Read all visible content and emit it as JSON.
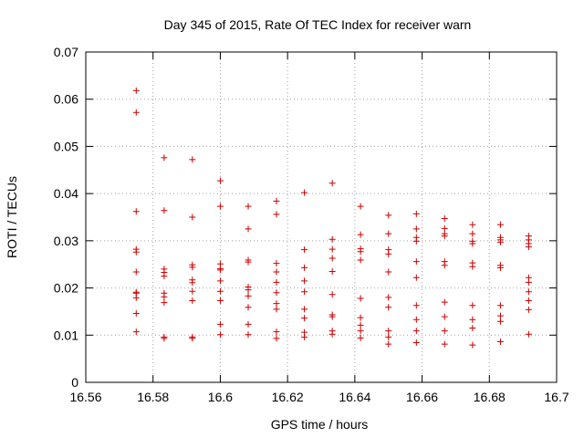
{
  "chart_data": {
    "type": "scatter",
    "title": "Day 345 of 2015, Rate Of TEC Index for receiver warn",
    "xlabel": "GPS time / hours",
    "ylabel": "ROTI / TECUs",
    "xlim": [
      16.56,
      16.7
    ],
    "ylim": [
      0,
      0.07
    ],
    "xticks": [
      16.56,
      16.58,
      16.6,
      16.62,
      16.64,
      16.66,
      16.68,
      16.7
    ],
    "xtick_labels": [
      "16.56",
      "16.58",
      "16.6",
      "16.62",
      "16.64",
      "16.66",
      "16.68",
      "16.7"
    ],
    "yticks": [
      0,
      0.01,
      0.02,
      0.03,
      0.04,
      0.05,
      0.06,
      0.07
    ],
    "ytick_labels": [
      "0",
      "0.01",
      "0.02",
      "0.03",
      "0.04",
      "0.05",
      "0.06",
      "0.07"
    ],
    "grid": true,
    "marker": "+",
    "marker_color": "#cc0000",
    "series": [
      {
        "x": 16.575,
        "y": [
          0.0618,
          0.0572,
          0.0362,
          0.0282,
          0.0276,
          0.0234,
          0.0191,
          0.0189,
          0.0179,
          0.0146,
          0.0107
        ]
      },
      {
        "x": 16.5833,
        "y": [
          0.0476,
          0.0364,
          0.024,
          0.0233,
          0.0225,
          0.0189,
          0.0181,
          0.0169,
          0.0096,
          0.0093
        ]
      },
      {
        "x": 16.5917,
        "y": [
          0.0472,
          0.035,
          0.0249,
          0.0244,
          0.0217,
          0.0211,
          0.0193,
          0.0173,
          0.0096,
          0.0093
        ]
      },
      {
        "x": 16.6,
        "y": [
          0.0427,
          0.0373,
          0.0251,
          0.0241,
          0.0238,
          0.0215,
          0.0193,
          0.0173,
          0.0123,
          0.0101
        ]
      },
      {
        "x": 16.6083,
        "y": [
          0.0373,
          0.0325,
          0.0259,
          0.0255,
          0.0202,
          0.0196,
          0.0183,
          0.0159,
          0.0123,
          0.0101
        ]
      },
      {
        "x": 16.6167,
        "y": [
          0.0384,
          0.0356,
          0.0252,
          0.0234,
          0.0212,
          0.019,
          0.0167,
          0.0155,
          0.0107,
          0.0093
        ]
      },
      {
        "x": 16.625,
        "y": [
          0.0402,
          0.0281,
          0.0243,
          0.0215,
          0.0192,
          0.0155,
          0.0136,
          0.0106,
          0.0096
        ]
      },
      {
        "x": 16.6333,
        "y": [
          0.0422,
          0.0303,
          0.0282,
          0.0263,
          0.0235,
          0.0186,
          0.0143,
          0.0139,
          0.0109,
          0.0102
        ]
      },
      {
        "x": 16.6417,
        "y": [
          0.0373,
          0.0313,
          0.0283,
          0.0277,
          0.0259,
          0.0178,
          0.0137,
          0.0121,
          0.0109,
          0.0094
        ]
      },
      {
        "x": 16.65,
        "y": [
          0.0354,
          0.0315,
          0.0281,
          0.0272,
          0.0234,
          0.018,
          0.0159,
          0.0109,
          0.0096,
          0.0081
        ]
      },
      {
        "x": 16.6583,
        "y": [
          0.0357,
          0.0325,
          0.0307,
          0.0299,
          0.0256,
          0.0222,
          0.0163,
          0.0133,
          0.0109,
          0.0084
        ]
      },
      {
        "x": 16.6667,
        "y": [
          0.0347,
          0.0326,
          0.0315,
          0.031,
          0.0256,
          0.0248,
          0.017,
          0.0139,
          0.0109,
          0.0081
        ]
      },
      {
        "x": 16.675,
        "y": [
          0.0334,
          0.0315,
          0.0299,
          0.0294,
          0.0253,
          0.0245,
          0.0163,
          0.0133,
          0.0115,
          0.0079
        ]
      },
      {
        "x": 16.6833,
        "y": [
          0.0334,
          0.0307,
          0.0302,
          0.0297,
          0.0248,
          0.0243,
          0.0163,
          0.0141,
          0.0129,
          0.0086
        ]
      },
      {
        "x": 16.6917,
        "y": [
          0.031,
          0.0302,
          0.0294,
          0.0287,
          0.0222,
          0.0212,
          0.0192,
          0.0173,
          0.0154,
          0.0102
        ]
      }
    ]
  }
}
